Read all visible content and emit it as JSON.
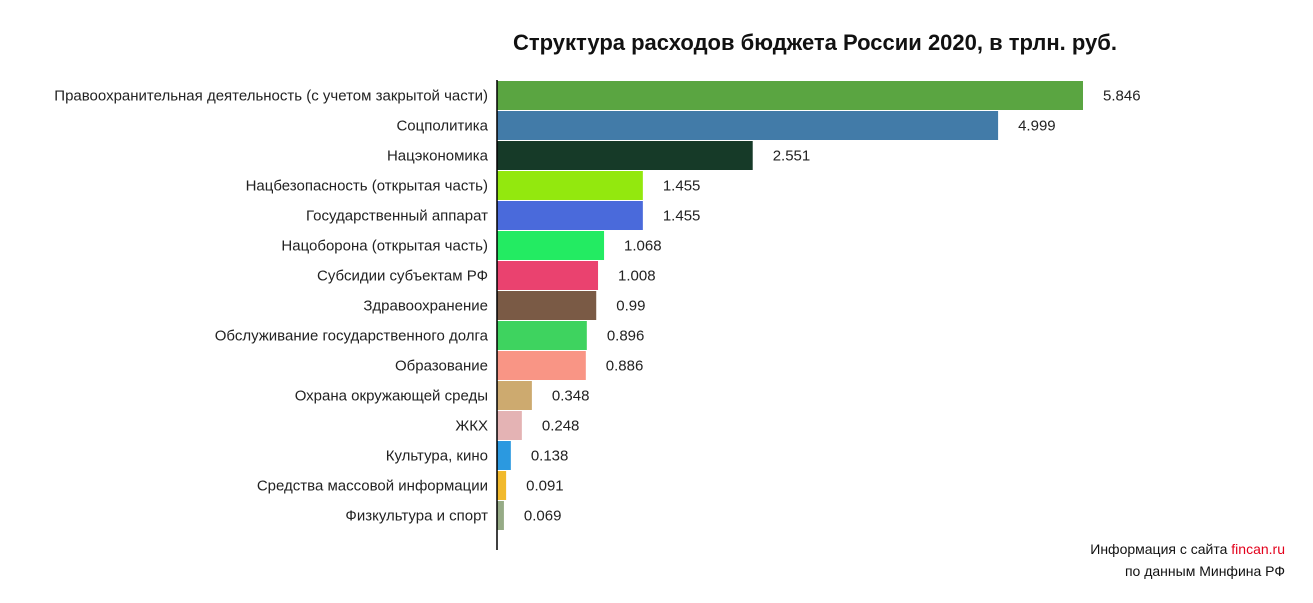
{
  "chart_data": {
    "type": "bar",
    "orientation": "horizontal",
    "title": "Структура расходов бюджета России 2020, в трлн. руб.",
    "xlabel": "",
    "ylabel": "",
    "grid": false,
    "xlim": [
      0,
      5.846
    ],
    "categories": [
      "Правоохранительная деятельность (с учетом закрытой части)",
      "Соцполитика",
      "Нацэкономика",
      "Нацбезопасность (открытая часть)",
      "Государственный аппарат",
      "Нацоборона (открытая часть)",
      "Субсидии субъектам РФ",
      "Здравоохранение",
      "Обслуживание государственного долга",
      "Образование",
      "Охрана окружающей среды",
      "ЖКХ",
      "Культура, кино",
      "Средства массовой информации",
      "Физкультура и спорт"
    ],
    "values": [
      5.846,
      4.999,
      2.551,
      1.455,
      1.455,
      1.068,
      1.008,
      0.99,
      0.896,
      0.886,
      0.348,
      0.248,
      0.138,
      0.091,
      0.069
    ],
    "value_labels": [
      "5.846",
      "4.999",
      "2.551",
      "1.455",
      "1.455",
      "1.068",
      "1.008",
      "0.99",
      "0.896",
      "0.886",
      "0.348",
      "0.248",
      "0.138",
      "0.091",
      "0.069"
    ],
    "colors": [
      "#5aa541",
      "#427ba8",
      "#163a28",
      "#93e80e",
      "#4a6adb",
      "#23eb62",
      "#ea426f",
      "#7a5a45",
      "#3ed35f",
      "#f99585",
      "#cdaa6f",
      "#e4b3b4",
      "#2b99e0",
      "#f1b92c",
      "#96ab86"
    ]
  },
  "source": {
    "prefix": "Информация с сайта",
    "site": "fincan.ru",
    "line2": "по данным Минфина РФ",
    "site_color": "#e3001b"
  }
}
